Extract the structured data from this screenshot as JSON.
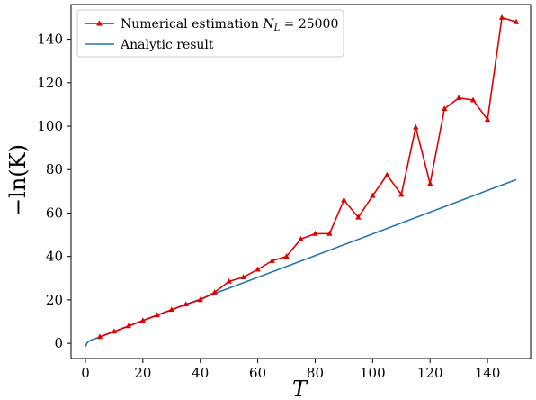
{
  "chart_data": {
    "type": "line",
    "xlabel": "T",
    "ylabel": "−ln(K)",
    "xlim": [
      -5,
      155
    ],
    "ylim": [
      -7,
      156
    ],
    "xticks": [
      0,
      20,
      40,
      60,
      80,
      100,
      120,
      140
    ],
    "yticks": [
      0,
      20,
      40,
      60,
      80,
      100,
      120,
      140
    ],
    "grid": false,
    "legend_position": "top-left",
    "legend": [
      "Numerical estimation N_L = 25000",
      "Analytic result"
    ],
    "series": [
      {
        "name": "Numerical estimation N_L = 25000",
        "color": "#e00000",
        "marker": "triangle",
        "x": [
          5,
          10,
          15,
          20,
          25,
          30,
          35,
          40,
          45,
          50,
          55,
          60,
          65,
          70,
          75,
          80,
          85,
          90,
          95,
          100,
          105,
          110,
          115,
          120,
          125,
          130,
          135,
          140,
          145,
          150
        ],
        "y": [
          3,
          5.5,
          8,
          10.5,
          13,
          15.5,
          18,
          20,
          23.5,
          28.5,
          30.5,
          34,
          38,
          40,
          48,
          50.5,
          50.5,
          66,
          58,
          68,
          77.5,
          68.5,
          99.5,
          73.5,
          108,
          113,
          112,
          103,
          150,
          148
        ]
      },
      {
        "name": "Analytic result",
        "color": "#1f77b4",
        "marker": "none",
        "x": [
          0,
          0.5,
          1,
          2,
          5,
          10,
          20,
          40,
          60,
          80,
          100,
          120,
          140,
          150
        ],
        "y": [
          -1.5,
          0,
          0.8,
          1.5,
          2.9,
          5.4,
          10.4,
          20.4,
          30.4,
          40.4,
          50.4,
          60.4,
          70.4,
          75.4
        ]
      }
    ]
  }
}
